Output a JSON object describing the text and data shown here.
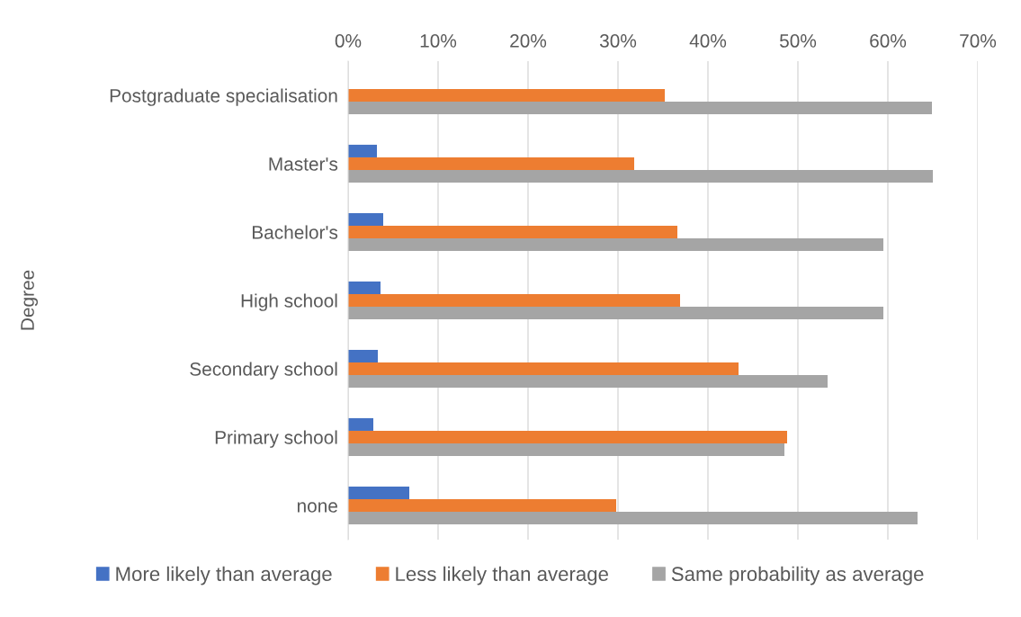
{
  "chart_data": {
    "type": "bar",
    "orientation": "horizontal",
    "ylabel": "Degree",
    "categories": [
      "Postgraduate specialisation",
      "Master's",
      "Bachelor's",
      "High school",
      "Secondary school",
      "Primary school",
      "none"
    ],
    "series": [
      {
        "name": "More likely than average",
        "color": "#4472c4",
        "values": [
          null,
          3.2,
          3.9,
          3.6,
          3.3,
          2.8,
          6.8
        ]
      },
      {
        "name": "Less likely than average",
        "color": "#ed7d31",
        "values": [
          35.2,
          31.8,
          36.6,
          36.9,
          43.4,
          48.8,
          29.8
        ]
      },
      {
        "name": "Same probability as average",
        "color": "#a5a5a5",
        "values": [
          64.9,
          65.0,
          59.5,
          59.5,
          53.3,
          48.5,
          63.3
        ]
      }
    ],
    "xlim": [
      0,
      70
    ],
    "xticks": [
      {
        "value": 0,
        "label": "0%"
      },
      {
        "value": 10,
        "label": "10%"
      },
      {
        "value": 20,
        "label": "20%"
      },
      {
        "value": 30,
        "label": "30%"
      },
      {
        "value": 40,
        "label": "40%"
      },
      {
        "value": 50,
        "label": "50%"
      },
      {
        "value": 60,
        "label": "60%"
      },
      {
        "value": 70,
        "label": "70%"
      }
    ],
    "grid": "x",
    "legend": "bottom"
  }
}
